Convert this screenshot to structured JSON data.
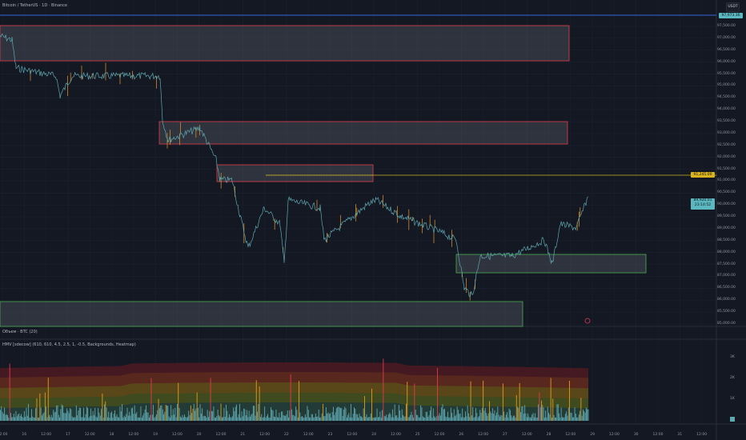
{
  "header": {
    "symbol_title": "Bitcoin / TetherUS · 1D · Binance"
  },
  "price_axis": {
    "currency": "USDT",
    "labels": [
      "97,500.00",
      "97,000.00",
      "96,500.00",
      "96,000.00",
      "95,500.00",
      "95,000.00",
      "94,500.00",
      "94,000.00",
      "93,500.00",
      "93,000.00",
      "92,500.00",
      "92,000.00",
      "91,500.00",
      "91,000.00",
      "90,500.00",
      "90,000.00",
      "89,500.00",
      "89,000.00",
      "88,500.00",
      "88,000.00",
      "87,500.00",
      "87,000.00",
      "86,500.00",
      "86,000.00",
      "85,500.00",
      "85,000.00"
    ],
    "top_tag": "97,973.36",
    "level_tag": "91,245.00",
    "current_price": "89,920.01",
    "current_countdown": "23:14:52"
  },
  "time_axis": {
    "labels": [
      "12:00",
      "16",
      "12:00",
      "17",
      "12:00",
      "18",
      "12:00",
      "19",
      "12:00",
      "20",
      "12:00",
      "21",
      "12:00",
      "22",
      "12:00",
      "23",
      "12:00",
      "24",
      "12:00",
      "25",
      "12:00",
      "26",
      "12:00",
      "27",
      "12:00",
      "28",
      "12:00",
      "29",
      "12:00",
      "30",
      "12:00",
      "31",
      "12:00"
    ]
  },
  "panes": {
    "volume_label": "Объем · BTC (20)",
    "hmv_label": "HMV [sdecow] (610, 610, 4.5, 2.5, 1, -0.5, Backgrounds, Heatmap)",
    "hmv_axis": [
      "3K",
      "2K",
      "1K"
    ]
  },
  "colors": {
    "background": "#141823",
    "supply_zone": "#e23b4a",
    "demand_zone": "#4caf50",
    "level_line": "#c9b22a",
    "price_line": "#5fa8b0",
    "top_line": "#2d55b8"
  }
}
